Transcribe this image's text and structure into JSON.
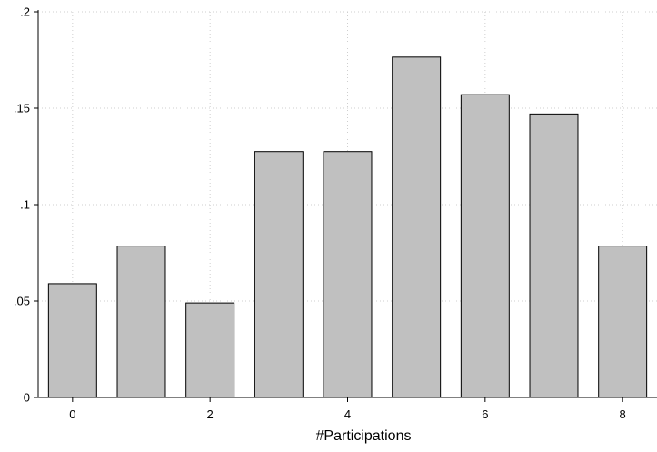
{
  "chart_data": {
    "type": "bar",
    "title": "",
    "xlabel": "#Participations",
    "ylabel": "",
    "x": [
      0,
      1,
      2,
      3,
      4,
      5,
      6,
      7,
      8
    ],
    "values": [
      0.059,
      0.0785,
      0.049,
      0.1275,
      0.1275,
      0.1765,
      0.157,
      0.147,
      0.0785
    ],
    "bar_width": 0.7,
    "xlim": [
      -0.5,
      8.5
    ],
    "ylim": [
      0,
      0.2
    ],
    "xticks": [
      {
        "value": 0,
        "label": "0"
      },
      {
        "value": 2,
        "label": "2"
      },
      {
        "value": 4,
        "label": "4"
      },
      {
        "value": 6,
        "label": "6"
      },
      {
        "value": 8,
        "label": "8"
      }
    ],
    "yticks": [
      {
        "value": 0,
        "label": "0"
      },
      {
        "value": 0.05,
        "label": ".05"
      },
      {
        "value": 0.1,
        "label": ".1"
      },
      {
        "value": 0.15,
        "label": ".15"
      },
      {
        "value": 0.2,
        "label": ".2"
      }
    ],
    "grid": true,
    "legend": "none",
    "colors": {
      "bar_fill": "#c0c0c0",
      "bar_stroke": "#000000",
      "grid": "#cfcfcf",
      "axis": "#000000"
    }
  }
}
